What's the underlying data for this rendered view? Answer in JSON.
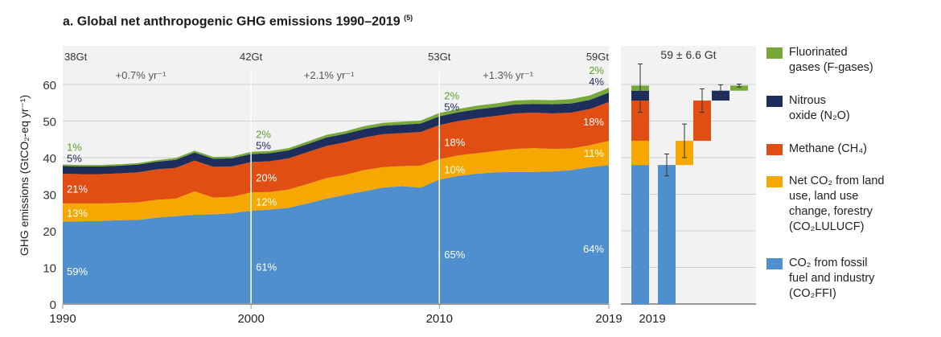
{
  "title": "a. Global net anthropogenic GHG emissions 1990–2019",
  "title_ref": "(5)",
  "chart_data": [
    {
      "type": "area",
      "stacked": true,
      "ylabel": "GHG emissions (GtCO₂-eq yr⁻¹)",
      "ylim": [
        0,
        65
      ],
      "yticks": [
        0,
        10,
        20,
        30,
        40,
        50,
        60
      ],
      "xticks": [
        1990,
        2000,
        2010,
        2019
      ],
      "grid": true,
      "x": [
        1990,
        1991,
        1992,
        1993,
        1994,
        1995,
        1996,
        1997,
        1998,
        1999,
        2000,
        2001,
        2002,
        2003,
        2004,
        2005,
        2006,
        2007,
        2008,
        2009,
        2010,
        2011,
        2012,
        2013,
        2014,
        2015,
        2016,
        2017,
        2018,
        2019
      ],
      "series": [
        {
          "name": "CO2 from fossil fuel and industry (CO2FFI)",
          "color": "#4f8fcd",
          "values": [
            22.5,
            22.6,
            22.7,
            22.9,
            23.0,
            23.6,
            24.0,
            24.4,
            24.5,
            24.8,
            25.5,
            25.8,
            26.3,
            27.5,
            28.8,
            29.8,
            30.8,
            31.8,
            32.2,
            31.8,
            34.0,
            35.0,
            35.6,
            36.0,
            36.1,
            36.1,
            36.2,
            36.6,
            37.4,
            38.0
          ]
        },
        {
          "name": "Net CO2 from LULUCF",
          "color": "#f6a800",
          "values": [
            5.0,
            4.9,
            4.8,
            4.7,
            4.8,
            4.9,
            4.8,
            6.4,
            4.6,
            4.5,
            5.0,
            4.8,
            5.0,
            5.3,
            5.6,
            5.5,
            5.8,
            5.6,
            5.5,
            6.0,
            5.6,
            5.6,
            5.6,
            5.8,
            6.3,
            6.5,
            6.2,
            5.9,
            6.0,
            6.6
          ]
        },
        {
          "name": "Methane (CH4)",
          "color": "#e04e13",
          "values": [
            8.1,
            8.0,
            8.0,
            8.1,
            8.2,
            8.3,
            8.4,
            8.4,
            8.4,
            8.3,
            8.3,
            8.4,
            8.5,
            8.7,
            8.8,
            8.9,
            8.9,
            9.0,
            9.0,
            9.2,
            9.3,
            9.4,
            9.6,
            9.6,
            9.7,
            9.7,
            9.7,
            9.8,
            9.9,
            10.6
          ]
        },
        {
          "name": "Nitrous oxide (N2O)",
          "color": "#1d2d5c",
          "values": [
            2.1,
            2.1,
            2.1,
            2.1,
            2.1,
            2.1,
            2.2,
            2.2,
            2.2,
            2.2,
            2.2,
            2.2,
            2.2,
            2.2,
            2.3,
            2.3,
            2.3,
            2.3,
            2.3,
            2.3,
            2.4,
            2.4,
            2.4,
            2.4,
            2.4,
            2.4,
            2.5,
            2.5,
            2.5,
            2.6
          ]
        },
        {
          "name": "Fluorinated gases (F-gases)",
          "color": "#76a83a",
          "values": [
            0.4,
            0.4,
            0.4,
            0.4,
            0.4,
            0.4,
            0.5,
            0.5,
            0.5,
            0.5,
            0.6,
            0.6,
            0.6,
            0.7,
            0.7,
            0.7,
            0.8,
            0.8,
            0.8,
            0.8,
            0.9,
            0.9,
            1.0,
            1.0,
            1.1,
            1.1,
            1.1,
            1.2,
            1.2,
            1.3
          ]
        }
      ],
      "totals": [
        {
          "year": 1990,
          "label": "38Gt"
        },
        {
          "year": 2000,
          "label": "42Gt"
        },
        {
          "year": 2010,
          "label": "53Gt"
        },
        {
          "year": 2019,
          "label": "59Gt"
        }
      ],
      "growth_rates": [
        {
          "from": 1990,
          "to": 2000,
          "label": "+0.7% yr⁻¹"
        },
        {
          "from": 2000,
          "to": 2010,
          "label": "+2.1% yr⁻¹"
        },
        {
          "from": 2010,
          "to": 2019,
          "label": "+1.3% yr⁻¹"
        }
      ],
      "share_labels": [
        {
          "year": 1990,
          "shares": [
            "59%",
            "13%",
            "21%",
            "5%",
            "1%"
          ]
        },
        {
          "year": 2000,
          "shares": [
            "61%",
            "12%",
            "20%",
            "5%",
            "2%"
          ]
        },
        {
          "year": 2010,
          "shares": [
            "65%",
            "10%",
            "18%",
            "5%",
            "2%"
          ]
        },
        {
          "year": 2019,
          "shares": [
            "64%",
            "11%",
            "18%",
            "4%",
            "2%"
          ]
        }
      ]
    },
    {
      "type": "bar",
      "subtype": "waterfall",
      "xlabel": "2019",
      "title": "59 ± 6.6 Gt",
      "total": 59,
      "total_uncertainty": 6.6,
      "components": [
        {
          "name": "CO2FFI",
          "value": 38,
          "uncertainty": 3.0,
          "color": "#4f8fcd"
        },
        {
          "name": "CO2LULUCF",
          "value": 6.6,
          "uncertainty": 4.6,
          "color": "#f6a800"
        },
        {
          "name": "CH4",
          "value": 11,
          "uncertainty": 3.2,
          "color": "#e04e13"
        },
        {
          "name": "N2O",
          "value": 2.7,
          "uncertainty": 1.6,
          "color": "#1d2d5c"
        },
        {
          "name": "F-gases",
          "value": 1.4,
          "uncertainty": 0.41,
          "color": "#76a83a"
        }
      ]
    }
  ],
  "legend": [
    {
      "label": "Fluorinated\ngases (F-gases)",
      "color": "#76a83a"
    },
    {
      "label": "Nitrous\noxide (N₂O)",
      "color": "#1d2d5c"
    },
    {
      "label": "Methane (CH₄)",
      "color": "#e04e13"
    },
    {
      "label": "Net CO₂ from land\nuse, land use\nchange, forestry\n(CO₂LULUCF)",
      "color": "#f6a800"
    },
    {
      "label": "CO₂ from fossil\nfuel and industry\n(CO₂FFI)",
      "color": "#4f8fcd"
    }
  ]
}
